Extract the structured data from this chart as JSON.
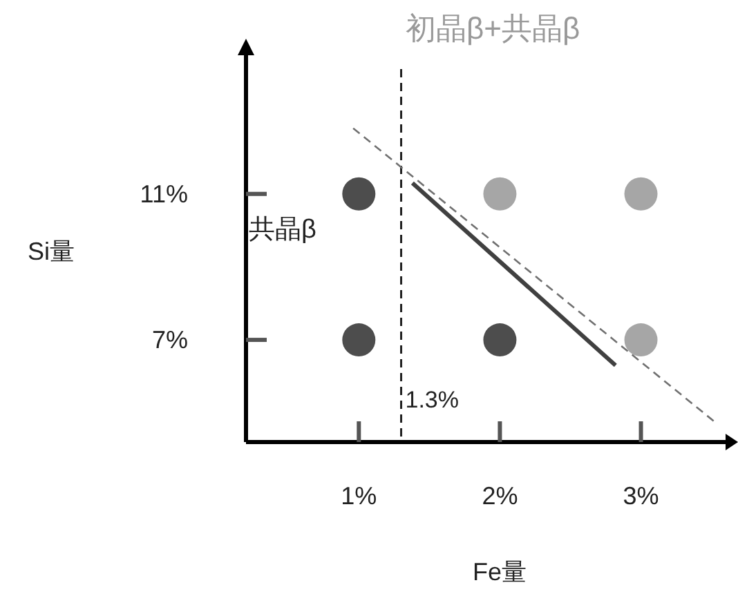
{
  "chart_data": {
    "type": "scatter",
    "xlabel": "Fe量",
    "ylabel": "Si量",
    "xlim": [
      0.2,
      3.6
    ],
    "ylim": [
      4.2,
      14.8
    ],
    "xticks": [
      {
        "value": 1,
        "label": "1%"
      },
      {
        "value": 2,
        "label": "2%"
      },
      {
        "value": 3,
        "label": "3%"
      }
    ],
    "yticks": [
      {
        "value": 7,
        "label": "7%"
      },
      {
        "value": 11,
        "label": "11%"
      }
    ],
    "grid": false,
    "series": [
      {
        "color": "#4d4d4d",
        "marker": "circle",
        "x": [
          1,
          1,
          2
        ],
        "values": [
          11,
          7,
          7
        ]
      },
      {
        "color": "#a6a6a6",
        "marker": "circle",
        "x": [
          2,
          3,
          3
        ],
        "values": [
          11,
          11,
          7
        ]
      },
      {
        "type": "line",
        "color": "#404040",
        "line_style": "solid",
        "x": [
          1.38,
          2.82
        ],
        "values": [
          11.3,
          6.3
        ]
      },
      {
        "type": "line",
        "color": "#707070",
        "line_style": "dashed",
        "x": [
          0.96,
          3.54
        ],
        "values": [
          12.8,
          4.7
        ]
      }
    ],
    "ref_lines": [
      {
        "axis": "x",
        "value": 1.3,
        "label": "1.3%",
        "line_style": "dashed",
        "color": "#222222"
      }
    ],
    "annotations": [
      "初晶β+共晶β",
      "共晶β"
    ]
  }
}
